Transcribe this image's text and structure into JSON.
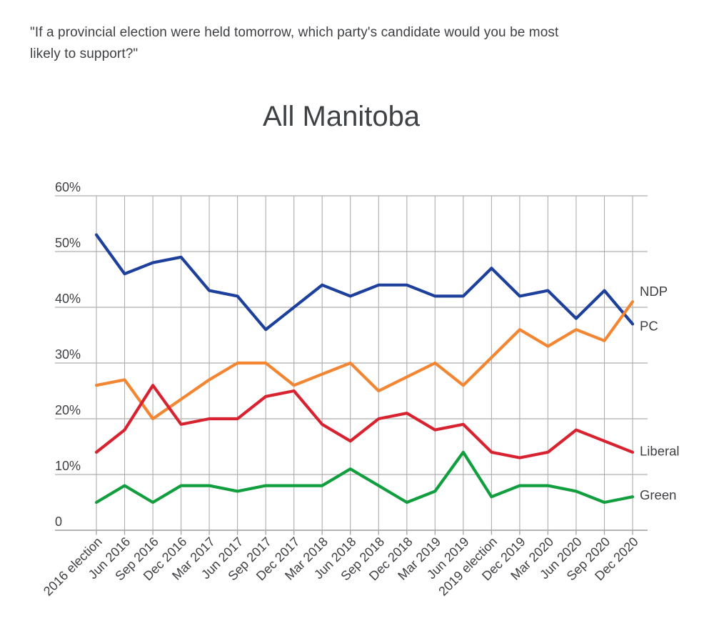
{
  "header": {
    "quote_line1": "\"If a provincial election were held tomorrow, which party's candidate would you be most",
    "quote_line2": "likely to support?\""
  },
  "chart_data": {
    "type": "line",
    "title": "All Manitoba",
    "xlabel": "",
    "ylabel": "",
    "ylim": [
      0,
      60
    ],
    "grid": true,
    "legend_position": "right-end-of-lines",
    "ytick_values": [
      60,
      50,
      40,
      30,
      20,
      10,
      0
    ],
    "ytick_labels": [
      "60%",
      "50%",
      "40%",
      "30%",
      "20%",
      "10%",
      "0"
    ],
    "categories": [
      "2016 election",
      "Jun 2016",
      "Sep 2016",
      "Dec 2016",
      "Mar 2017",
      "Jun 2017",
      "Sep 2017",
      "Dec 2017",
      "Mar 2018",
      "Jun 2018",
      "Sep 2018",
      "Dec 2018",
      "Mar 2019",
      "Jun 2019",
      "2019 election",
      "Dec 2019",
      "Mar 2020",
      "Jun 2020",
      "Sep 2020",
      "Dec 2020"
    ],
    "series": [
      {
        "name": "PC",
        "color": "#1d409d",
        "values": [
          53,
          46,
          48,
          49,
          43,
          42,
          36,
          40,
          44,
          42,
          44,
          44,
          42,
          42,
          47,
          42,
          43,
          38,
          43,
          37
        ]
      },
      {
        "name": "NDP",
        "color": "#f28632",
        "values": [
          26,
          27,
          20,
          23.5,
          27,
          30,
          30,
          26,
          28,
          30,
          25,
          27.5,
          30,
          26,
          31,
          36,
          33,
          36,
          34,
          41
        ]
      },
      {
        "name": "Liberal",
        "color": "#d8222f",
        "values": [
          14,
          18,
          26,
          19,
          20,
          20,
          24,
          25,
          19,
          16,
          20,
          21,
          18,
          19,
          14,
          13,
          14,
          18,
          16,
          14
        ]
      },
      {
        "name": "Green",
        "color": "#119e3e",
        "values": [
          5,
          8,
          5,
          8,
          8,
          7,
          8,
          8,
          8,
          11,
          8,
          5,
          7,
          14,
          6,
          8,
          8,
          7,
          5,
          6
        ]
      }
    ],
    "colors": {
      "grid": "#aeaeae",
      "axis": "#a3a3a3",
      "text": "#3d3f42"
    }
  }
}
